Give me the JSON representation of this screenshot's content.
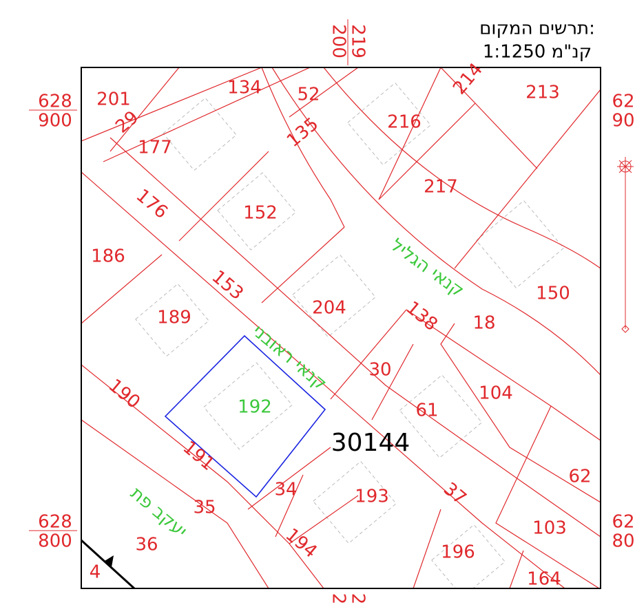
{
  "header": {
    "title": "תרשים המקום:",
    "scale": "קנ\"מ 1:1250"
  },
  "coordinates": {
    "left_top": [
      "628",
      "900"
    ],
    "left_bottom": [
      "628",
      "800"
    ],
    "right_top": [
      "62",
      "90"
    ],
    "right_bottom": [
      "62",
      "80"
    ],
    "top": [
      "219",
      "200"
    ],
    "bottom": [
      "2",
      "2"
    ]
  },
  "block": "30144",
  "streets": [
    "קנאי הגליל",
    "קנאי ראובני",
    "יעקב פת"
  ],
  "parcels": [
    "201",
    "29",
    "177",
    "134",
    "52",
    "135",
    "216",
    "214",
    "213",
    "217",
    "176",
    "152",
    "186",
    "153",
    "204",
    "138",
    "150",
    "18",
    "189",
    "30",
    "104",
    "61",
    "190",
    "192",
    "62",
    "191",
    "34",
    "193",
    "37",
    "35",
    "36",
    "194",
    "103",
    "196",
    "164",
    "4"
  ]
}
